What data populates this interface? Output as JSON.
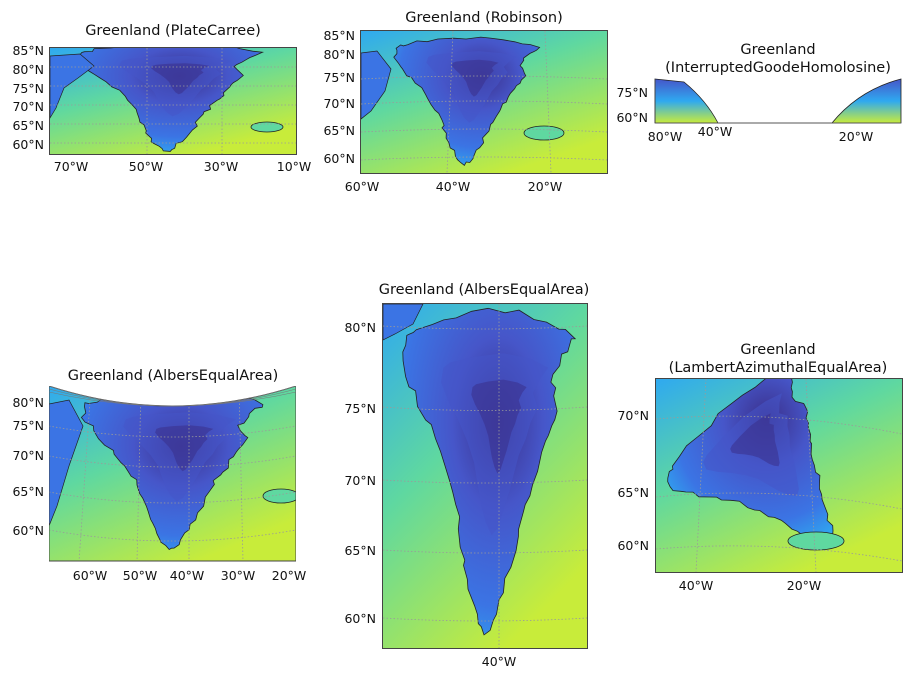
{
  "panels": [
    {
      "title": "Greenland (PlateCarree)",
      "yticks": [
        "85°N",
        "80°N",
        "75°N",
        "70°N",
        "65°N",
        "60°N"
      ],
      "xticks": [
        "70°W",
        "50°W",
        "30°W",
        "10°W"
      ]
    },
    {
      "title": "Greenland (Robinson)",
      "yticks": [
        "85°N",
        "80°N",
        "75°N",
        "70°N",
        "65°N",
        "60°N"
      ],
      "xticks": [
        "60°W",
        "40°W",
        "20°W"
      ]
    },
    {
      "title_line1": "Greenland",
      "title_line2": "(InterruptedGoodeHomolosine)",
      "yticks": [
        "75°N",
        "60°N"
      ],
      "xticks": [
        "80°W",
        "40°W",
        "20°W"
      ]
    },
    {
      "title": "Greenland (AlbersEqualArea)",
      "yticks": [
        "80°N",
        "75°N",
        "70°N",
        "65°N",
        "60°N"
      ],
      "xticks": [
        "60°W",
        "50°W",
        "40°W",
        "30°W",
        "20°W"
      ]
    },
    {
      "title": "Greenland (AlbersEqualArea)",
      "yticks": [
        "80°N",
        "75°N",
        "70°N",
        "65°N",
        "60°N"
      ],
      "xticks": [
        "40°W"
      ]
    },
    {
      "title_line1": "Greenland",
      "title_line2": "(LambertAzimuthalEqualArea)",
      "yticks": [
        "70°N",
        "65°N",
        "60°N"
      ],
      "xticks": [
        "40°W",
        "20°W"
      ]
    }
  ],
  "colors": {
    "ocean_outer": "#c8ec3a",
    "ocean_mid": "#5fd8a0",
    "ocean_coast": "#2fa9f0",
    "ice_edge": "#3b74e4",
    "ice_mid": "#4656c9",
    "ice_core": "#3b2f8a",
    "coast_line": "#222222",
    "grid": "#9a9a9a"
  }
}
